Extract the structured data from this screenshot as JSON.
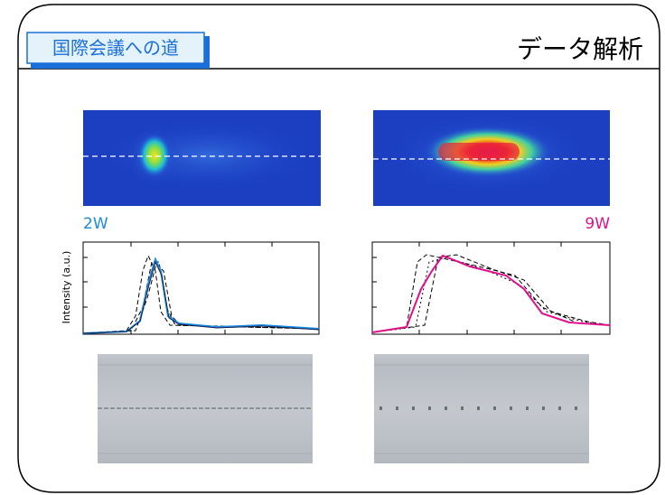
{
  "header": {
    "badge": "国際会議への道",
    "title": "データ解析"
  },
  "panels": {
    "left": {
      "label": "2W"
    },
    "right": {
      "label": "9W"
    }
  },
  "plot": {
    "ylabel": "Intensity (a.u.)"
  }
}
